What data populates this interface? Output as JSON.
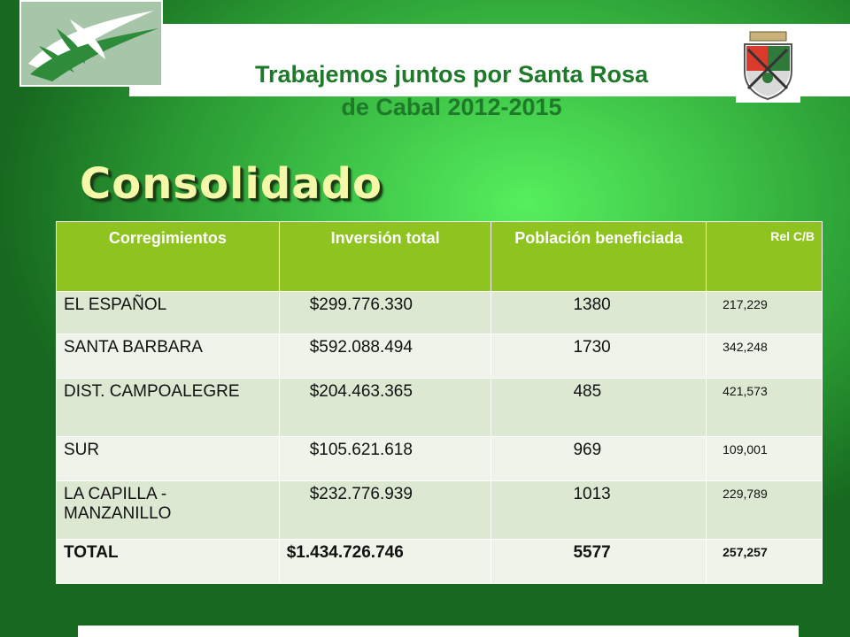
{
  "header": {
    "title_line1": "Trabajemos juntos por Santa Rosa",
    "title_line2": "de Cabal  2012-2015",
    "logo_icon": "dove-logo-icon",
    "crest_icon": "municipal-crest-icon"
  },
  "heading": "Consolidado",
  "table": {
    "columns": [
      "Corregimientos",
      "Inversión total",
      "Población beneficiada",
      "Rel C/B"
    ],
    "rows": [
      [
        "EL ESPAÑOL",
        "$299.776.330",
        "1380",
        "217,229"
      ],
      [
        "SANTA BARBARA",
        "$592.088.494",
        "1730",
        "342,248"
      ],
      [
        "DIST. CAMPOALEGRE",
        "$204.463.365",
        "485",
        "421,573"
      ],
      [
        "SUR",
        "$105.621.618",
        "969",
        "109,001"
      ],
      [
        "LA CAPILLA - MANZANILLO",
        "$232.776.939",
        "1013",
        "229,789"
      ]
    ],
    "total": [
      "TOTAL",
      "$1.434.726.746",
      "5577",
      "257,257"
    ]
  },
  "colors": {
    "header_green": "#8fc31f",
    "title_green": "#1e7a2a",
    "heading_yellow": "#f4f8a8"
  }
}
